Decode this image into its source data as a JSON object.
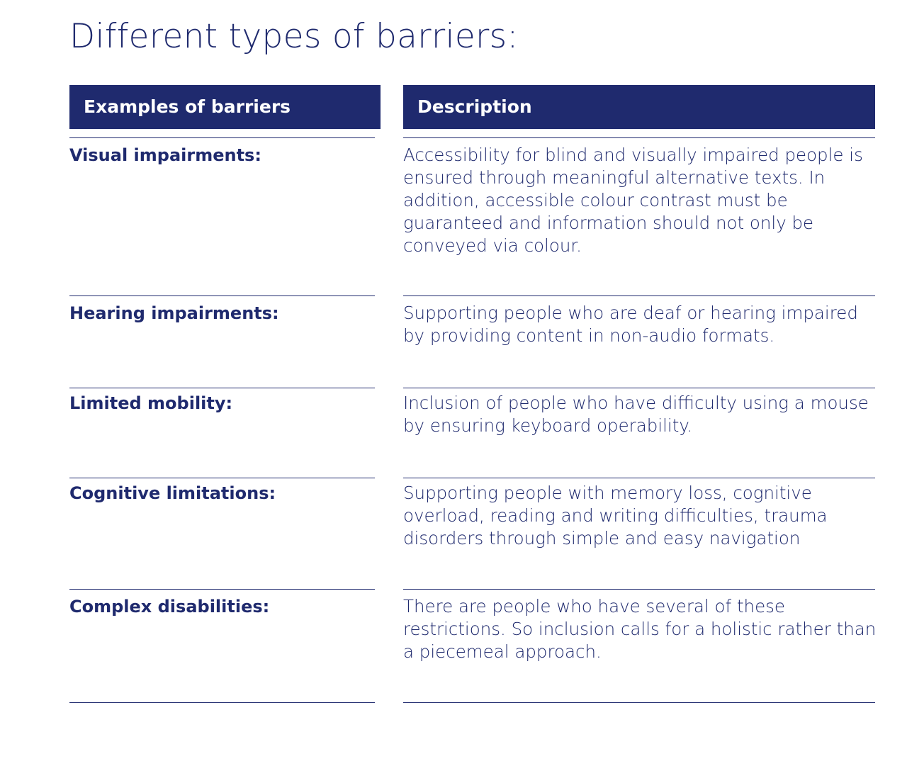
{
  "title": "Different types of barriers:",
  "table": {
    "headers": {
      "barriers": "Examples of barriers",
      "description": "Description"
    },
    "rows": [
      {
        "barrier": "Visual impairments:",
        "description": "Accessibility for blind and visually impaired people is ensured through meaningful alternative texts. In addition, accessible colour contrast must be guaranteed and information should not only be conveyed via colour."
      },
      {
        "barrier": "Hearing impairments:",
        "description": "Supporting people who are deaf or hearing impaired by providing content in non-audio formats."
      },
      {
        "barrier": "Limited mobility:",
        "description": "Inclusion of people who have difficulty using a mouse by ensuring keyboard operability."
      },
      {
        "barrier": "Cognitive limitations:",
        "description": "Supporting people with memory loss, cognitive overload, reading and writing difficulties, trauma disorders through simple and easy navigation"
      },
      {
        "barrier": "Complex disabilities:",
        "description": "There are people who have several of these restrictions. So inclusion calls for a holistic rather than a piecemeal approach."
      }
    ]
  },
  "colors": {
    "primary": "#1f2a6e",
    "header_text": "#ffffff"
  }
}
